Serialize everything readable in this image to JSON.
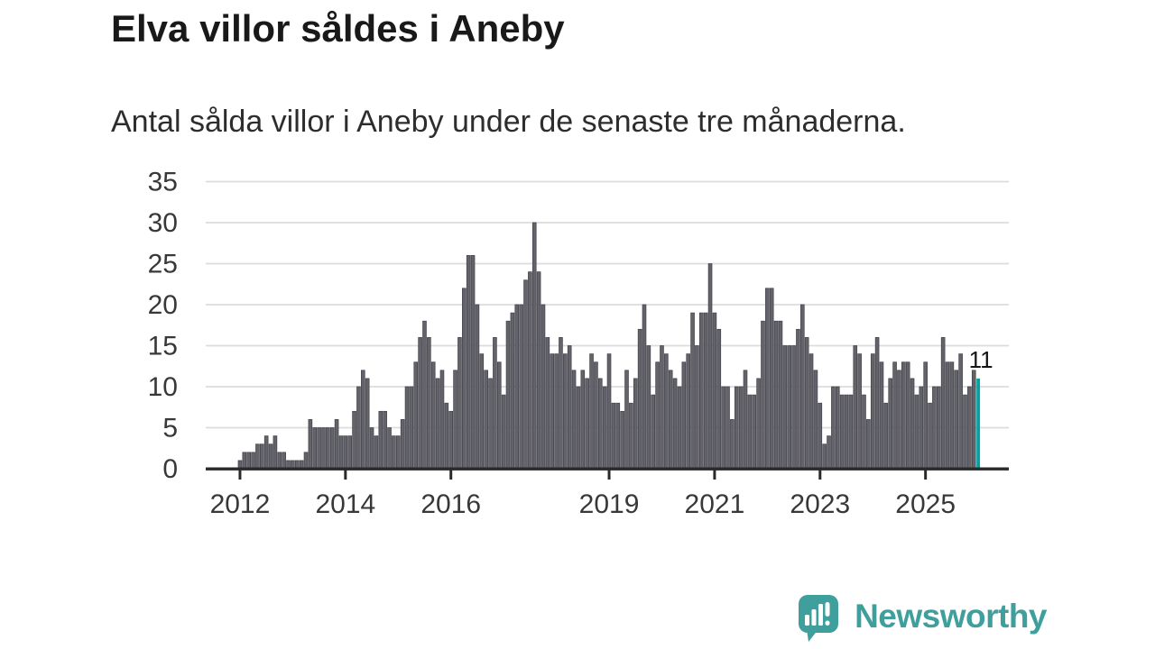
{
  "header": {
    "title": "Elva villor såldes i Aneby",
    "subtitle": "Antal sålda villor i Aneby under de senaste tre månaderna."
  },
  "chart_data": {
    "type": "bar",
    "title": "Elva villor såldes i Aneby",
    "subtitle": "Antal sålda villor i Aneby under de senaste tre månaderna.",
    "start_year": 2012,
    "start_month": 1,
    "values": [
      1,
      2,
      2,
      2,
      3,
      3,
      4,
      3,
      4,
      2,
      2,
      1,
      1,
      1,
      1,
      2,
      6,
      5,
      5,
      5,
      5,
      5,
      6,
      4,
      4,
      4,
      7,
      10,
      12,
      11,
      5,
      4,
      7,
      7,
      5,
      4,
      4,
      6,
      10,
      10,
      13,
      16,
      18,
      16,
      13,
      11,
      12,
      8,
      7,
      12,
      16,
      22,
      26,
      26,
      20,
      14,
      12,
      11,
      16,
      13,
      9,
      18,
      19,
      20,
      20,
      23,
      24,
      30,
      24,
      20,
      16,
      14,
      14,
      16,
      14,
      15,
      12,
      10,
      12,
      11,
      14,
      13,
      11,
      10,
      14,
      8,
      8,
      7,
      12,
      8,
      11,
      17,
      20,
      15,
      9,
      13,
      15,
      14,
      12,
      11,
      10,
      13,
      14,
      19,
      15,
      19,
      19,
      25,
      19,
      17,
      10,
      10,
      6,
      10,
      10,
      12,
      9,
      9,
      11,
      18,
      22,
      22,
      18,
      18,
      15,
      15,
      15,
      17,
      20,
      16,
      14,
      12,
      8,
      3,
      4,
      10,
      10,
      9,
      9,
      9,
      15,
      14,
      9,
      6,
      14,
      16,
      13,
      8,
      11,
      13,
      12,
      13,
      13,
      11,
      9,
      10,
      13,
      8,
      10,
      10,
      16,
      13,
      13,
      12,
      14,
      9,
      10,
      12,
      11
    ],
    "highlight_last": {
      "value": 11,
      "label": "11",
      "color": "#04a2a4"
    },
    "bar_color": "#636369",
    "bar_edge_color": "#41414b",
    "grid": true,
    "grid_color": "#dcdcdc",
    "axis_color": "#2a2a2a",
    "label_color": "#383838",
    "ylim": [
      0,
      35
    ],
    "y_ticks": [
      0,
      5,
      10,
      15,
      20,
      25,
      30,
      35
    ],
    "x_ticks": [
      2012,
      2014,
      2016,
      2019,
      2021,
      2023,
      2025
    ],
    "xlabel": "",
    "ylabel": ""
  },
  "annotation": {
    "last_value_label": "11"
  },
  "branding": {
    "name": "Newsworthy",
    "color": "#3f9f9c",
    "icon": "newsworthy-speech-bubble-chart-icon"
  }
}
